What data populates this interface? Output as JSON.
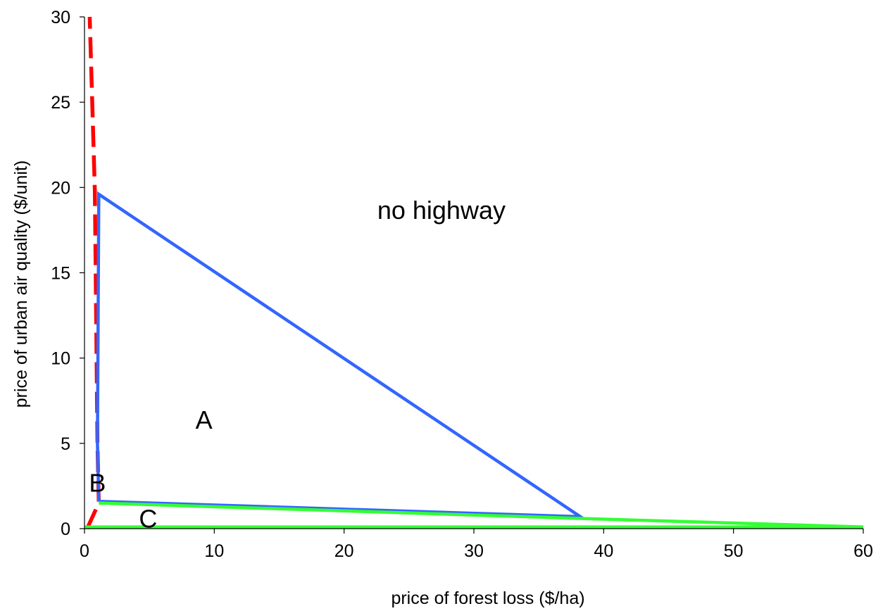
{
  "chart_data": {
    "type": "line",
    "title": "",
    "xlabel": "price of forest loss ($/ha)",
    "ylabel": "price of urban air quality ($/unit)",
    "xlim": [
      0,
      60
    ],
    "ylim": [
      0,
      30
    ],
    "x_ticks": [
      0,
      10,
      20,
      30,
      40,
      50,
      60
    ],
    "y_ticks": [
      0,
      5,
      10,
      15,
      20,
      25,
      30
    ],
    "grid": false,
    "legend": "none",
    "series": [
      {
        "color": "#ff0000",
        "style": "dashed",
        "points": [
          [
            0.2,
            0
          ],
          [
            1.1,
            1.5
          ],
          [
            1.0,
            5
          ],
          [
            0.8,
            19.8
          ],
          [
            0.4,
            30
          ]
        ]
      },
      {
        "color": "#3366ff",
        "style": "solid",
        "points": [
          [
            1.1,
            1.6
          ],
          [
            1.0,
            5
          ],
          [
            1.1,
            19.6
          ],
          [
            38.2,
            0.7
          ],
          [
            1.1,
            1.6
          ]
        ]
      },
      {
        "color": "#33ff33",
        "style": "solid",
        "points": [
          [
            1.1,
            1.5
          ],
          [
            38.2,
            0.6
          ],
          [
            60,
            0.1
          ],
          [
            0,
            0.1
          ]
        ]
      }
    ],
    "annotations": [
      {
        "text": "no highway",
        "x": 27.5,
        "y": 18.7
      },
      {
        "text": "A",
        "x": 9.2,
        "y": 6.4
      },
      {
        "text": "B",
        "x": 1.0,
        "y": 2.7
      },
      {
        "text": "C",
        "x": 4.9,
        "y": 0.6
      }
    ]
  }
}
